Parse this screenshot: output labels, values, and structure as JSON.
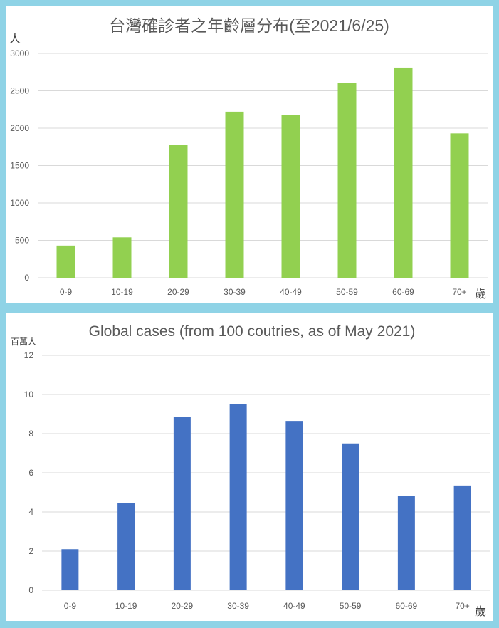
{
  "chart_data": [
    {
      "type": "bar",
      "title": "台灣確診者之年齡層分布(至2021/6/25)",
      "ylabel": "人",
      "xlabel": "歲",
      "categories": [
        "0-9",
        "10-19",
        "20-29",
        "30-39",
        "40-49",
        "50-59",
        "60-69",
        "70+"
      ],
      "values": [
        430,
        540,
        1780,
        2220,
        2180,
        2600,
        2810,
        1930
      ],
      "ylim": [
        0,
        3000
      ],
      "yticks": [
        "0",
        "500",
        "1000",
        "1500",
        "2000",
        "2500",
        "3000"
      ],
      "grid": true,
      "color": "#92d050"
    },
    {
      "type": "bar",
      "title": "Global cases (from 100 coutries, as of May 2021)",
      "ylabel": "百萬人",
      "xlabel": "歲",
      "categories": [
        "0-9",
        "10-19",
        "20-29",
        "30-39",
        "40-49",
        "50-59",
        "60-69",
        "70+"
      ],
      "values": [
        2.1,
        4.45,
        8.85,
        9.5,
        8.65,
        7.5,
        4.8,
        5.35
      ],
      "ylim": [
        0,
        12
      ],
      "yticks": [
        "0",
        "2",
        "4",
        "6",
        "8",
        "10",
        "12"
      ],
      "grid": true,
      "color": "#4472c4"
    }
  ]
}
